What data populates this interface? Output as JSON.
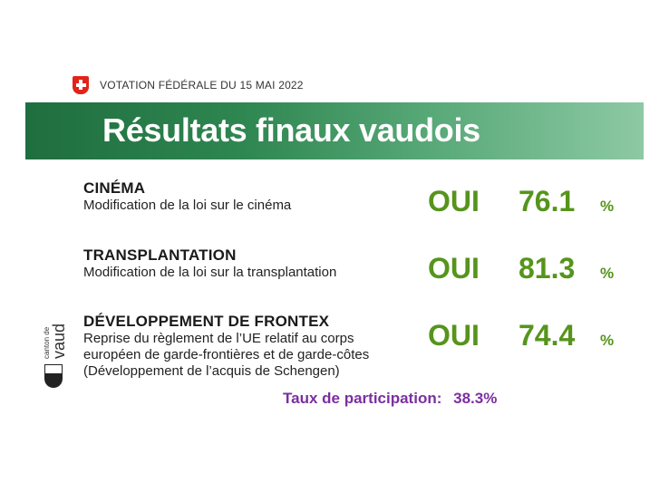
{
  "header": {
    "vote_date": "VOTATION FÉDÉRALE DU 15 MAI 2022",
    "banner_title": "Résultats finaux vaudois"
  },
  "logo": {
    "canton_line1": "canton de",
    "canton_line2": "vaud"
  },
  "items": [
    {
      "title": "CINÉMA",
      "description": [
        "Modification de la loi sur le cinéma"
      ],
      "answer": "OUI",
      "percent": "76.1",
      "percent_sign": "%"
    },
    {
      "title": "TRANSPLANTATION",
      "description": [
        "Modification de la loi sur la transplantation"
      ],
      "answer": "OUI",
      "percent": "81.3",
      "percent_sign": "%"
    },
    {
      "title": "DÉVELOPPEMENT DE FRONTEX",
      "description": [
        "Reprise du règlement de l’UE relatif au corps",
        "européen de garde-frontières et de garde-côtes",
        "(Développement de l’acquis de Schengen)"
      ],
      "answer": "OUI",
      "percent": "74.4",
      "percent_sign": "%"
    }
  ],
  "turnout": {
    "label": "Taux de participation:",
    "value": "38.3%"
  },
  "colors": {
    "banner_dark": "#1f6e3f",
    "banner_light": "#8dc9a4",
    "result_green": "#56941c",
    "turnout_purple": "#7b2fa0",
    "flag_red": "#e2231a"
  },
  "icons": {
    "flag": "swiss-flag-icon",
    "canton": "vaud-coat-of-arms-icon"
  }
}
